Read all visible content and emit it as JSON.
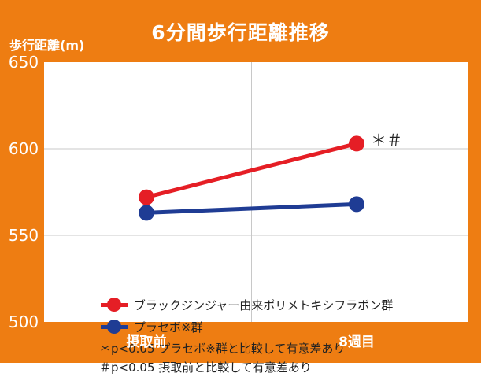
{
  "chart_data": {
    "type": "line",
    "title": "6分間歩行距離推移",
    "ylabel": "歩行距離(m)",
    "xlabel": "",
    "categories": [
      "摂取前",
      "8週目"
    ],
    "ylim": [
      500,
      650
    ],
    "yticks": [
      500,
      550,
      600,
      650
    ],
    "grid": true,
    "legend_position": "bottom-left",
    "series": [
      {
        "name": "ブラックジンジャー由来ポリメトキシフラボン群",
        "values": [
          572,
          603
        ],
        "color": "#e51e25"
      },
      {
        "name": "プラセボ※群",
        "values": [
          563,
          568
        ],
        "color": "#1f3c94"
      }
    ],
    "annotation": "＊＃",
    "footnotes": [
      "＊p<0.05 プラセボ※群と比較して有意差あり",
      "＃p<0.05 摂取前と比較して有意差あり"
    ]
  },
  "colors": {
    "frame": "#ee7d12",
    "plot_bg": "#ffffff",
    "grid": "#c8c8c8"
  }
}
